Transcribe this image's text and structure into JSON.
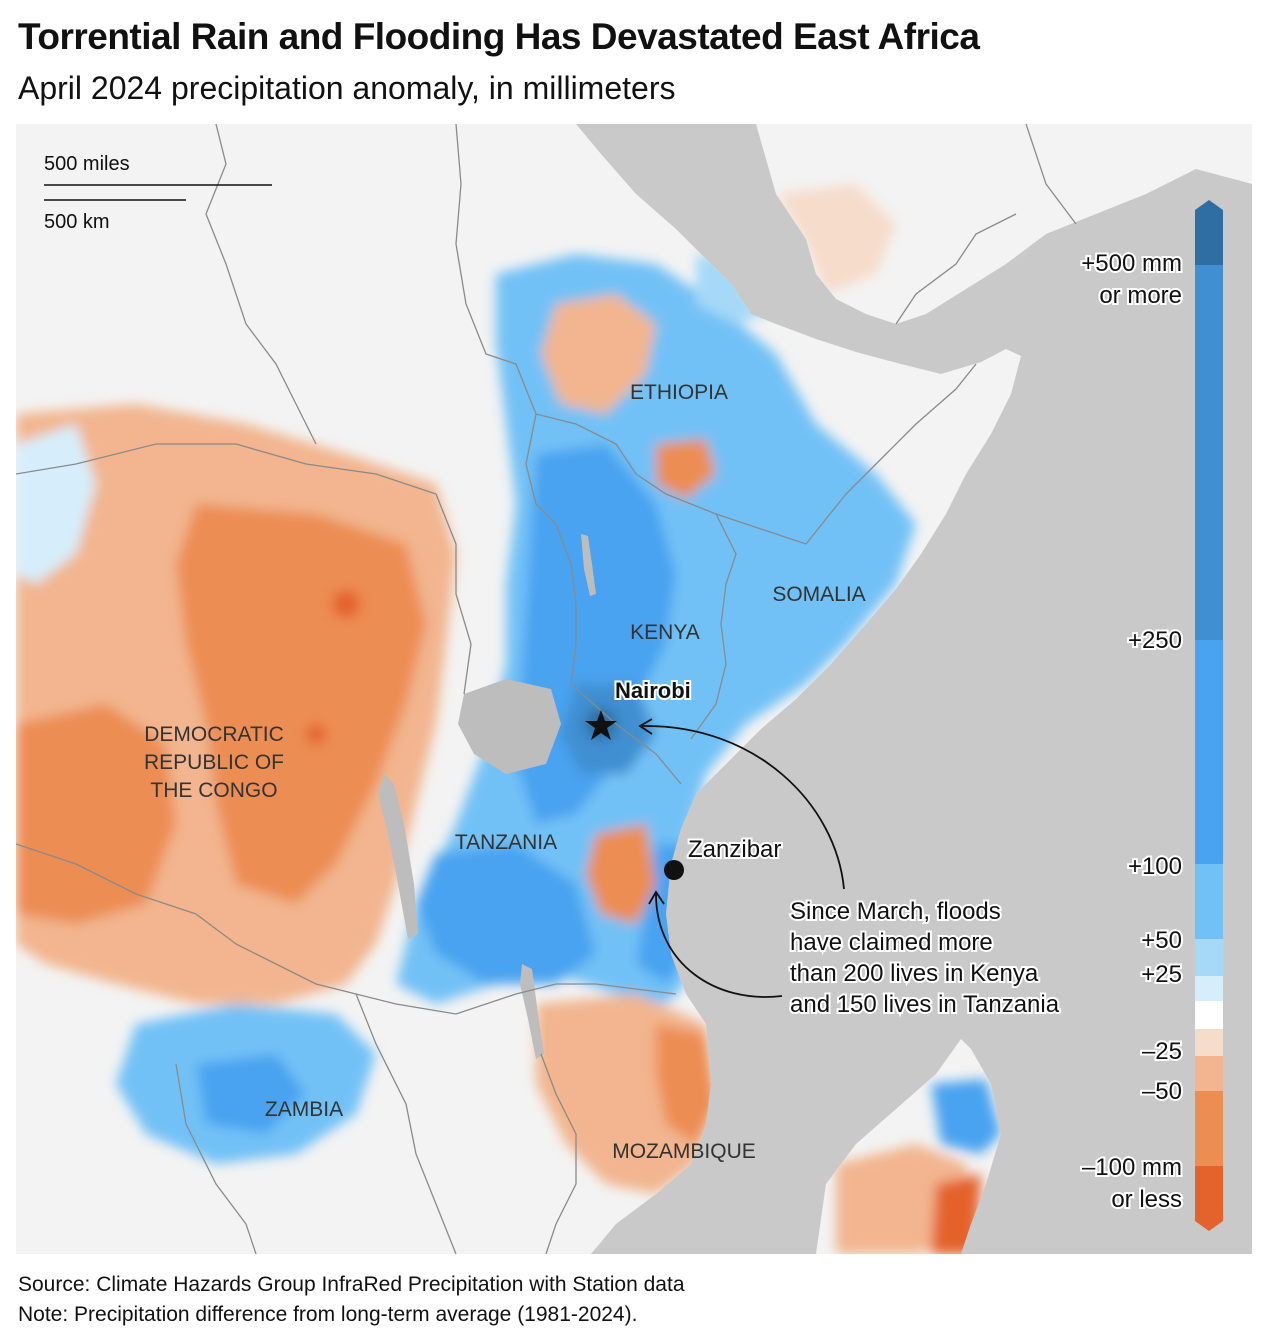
{
  "title": "Torrential Rain and Flooding Has Devastated East Africa",
  "subtitle": "April 2024 precipitation anomaly, in millimeters",
  "scale_bar": {
    "miles_label": "500 miles",
    "km_label": "500 km"
  },
  "countries": [
    {
      "id": "ethiopia",
      "label": "ETHIOPIA"
    },
    {
      "id": "somalia",
      "label": "SOMALIA"
    },
    {
      "id": "kenya",
      "label": "KENYA"
    },
    {
      "id": "tanzania",
      "label": "TANZANIA"
    },
    {
      "id": "zambia",
      "label": "ZAMBIA"
    },
    {
      "id": "mozambique",
      "label": "MOZAMBIQUE"
    },
    {
      "id": "drc",
      "label_lines": [
        "DEMOCRATIC",
        "REPUBLIC OF",
        "THE CONGO"
      ]
    }
  ],
  "places": {
    "nairobi": "Nairobi",
    "zanzibar": "Zanzibar"
  },
  "annotation": {
    "lines": [
      "Since March, floods",
      "have claimed more",
      "than 200 lives in Kenya",
      "and 150 lives in Tanzania"
    ]
  },
  "legend": {
    "labels": [
      {
        "id": "plus500",
        "lines": [
          "+500 mm",
          "or more"
        ]
      },
      {
        "id": "plus250",
        "lines": [
          "+250"
        ]
      },
      {
        "id": "plus100",
        "lines": [
          "+100"
        ]
      },
      {
        "id": "plus50",
        "lines": [
          "+50"
        ]
      },
      {
        "id": "plus25",
        "lines": [
          "+25"
        ]
      },
      {
        "id": "minus25",
        "lines": [
          "–25"
        ]
      },
      {
        "id": "minus50",
        "lines": [
          "–50"
        ]
      },
      {
        "id": "minus100",
        "lines": [
          "–100 mm",
          "or less"
        ]
      }
    ],
    "colors": {
      "over500": "#2f6ea3",
      "c250_500": "#3f8fd2",
      "c100_250": "#4aa3f0",
      "c50_100": "#72c1f6",
      "c25_50": "#a6d9f8",
      "c0_25": "#d6eefb",
      "neutral": "#ffffff",
      "m0_25": "#f6dccb",
      "m25_50": "#f2b58f",
      "m50_100": "#ec8d52",
      "under100": "#e4622c"
    }
  },
  "colors": {
    "sea": "#c9c9c9",
    "land": "#f3f3f3",
    "border": "#8a8a8a",
    "lake": "#bdbdbd"
  },
  "footer": {
    "source": "Source: Climate Hazards Group InfraRed Precipitation with Station data",
    "note": "Note: Precipitation difference from long-term average (1981-2024)."
  }
}
